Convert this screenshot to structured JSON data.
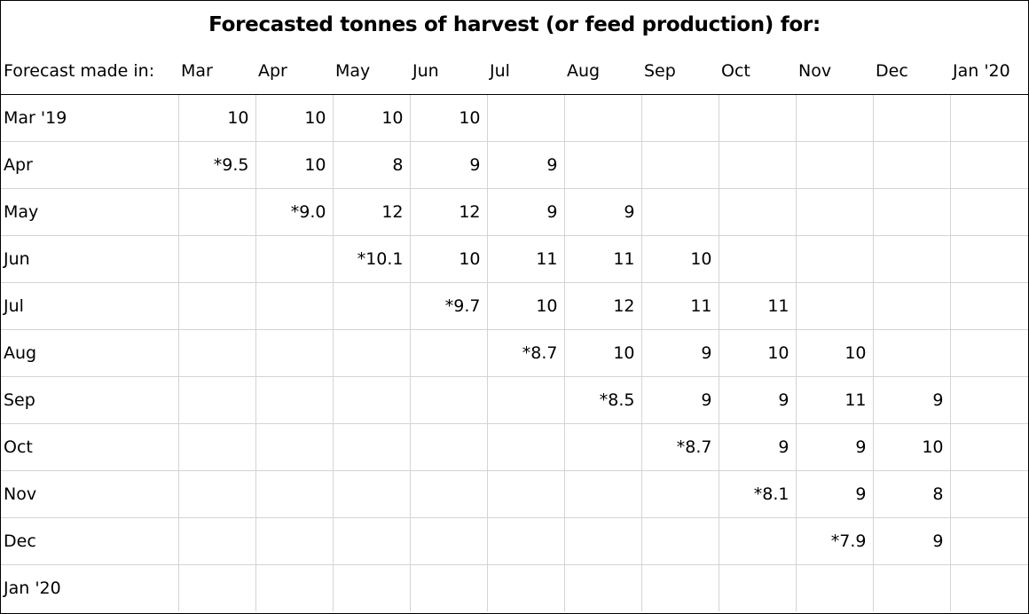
{
  "title": "Forecasted tonnes of harvest (or feed production) for:",
  "header": {
    "corner": "Forecast made in:",
    "months": [
      "Mar",
      "Apr",
      "May",
      "Jun",
      "Jul",
      "Aug",
      "Sep",
      "Oct",
      "Nov",
      "Dec",
      "Jan '20"
    ]
  },
  "rows": [
    {
      "label": "Mar '19",
      "cells": [
        "10",
        "10",
        "10",
        "10",
        "",
        "",
        "",
        "",
        "",
        "",
        ""
      ]
    },
    {
      "label": "Apr",
      "cells": [
        "*9.5",
        "10",
        "8",
        "9",
        "9",
        "",
        "",
        "",
        "",
        "",
        ""
      ]
    },
    {
      "label": "May",
      "cells": [
        "",
        "*9.0",
        "12",
        "12",
        "9",
        "9",
        "",
        "",
        "",
        "",
        ""
      ]
    },
    {
      "label": "Jun",
      "cells": [
        "",
        "",
        "*10.1",
        "10",
        "11",
        "11",
        "10",
        "",
        "",
        "",
        ""
      ]
    },
    {
      "label": "Jul",
      "cells": [
        "",
        "",
        "",
        "*9.7",
        "10",
        "12",
        "11",
        "11",
        "",
        "",
        ""
      ]
    },
    {
      "label": "Aug",
      "cells": [
        "",
        "",
        "",
        "",
        "*8.7",
        "10",
        "9",
        "10",
        "10",
        "",
        ""
      ]
    },
    {
      "label": "Sep",
      "cells": [
        "",
        "",
        "",
        "",
        "",
        "*8.5",
        "9",
        "9",
        "11",
        "9",
        ""
      ]
    },
    {
      "label": "Oct",
      "cells": [
        "",
        "",
        "",
        "",
        "",
        "",
        "*8.7",
        "9",
        "9",
        "10",
        ""
      ]
    },
    {
      "label": "Nov",
      "cells": [
        "",
        "",
        "",
        "",
        "",
        "",
        "",
        "*8.1",
        "9",
        "8",
        ""
      ]
    },
    {
      "label": "Dec",
      "cells": [
        "",
        "",
        "",
        "",
        "",
        "",
        "",
        "",
        "*7.9",
        "9",
        ""
      ]
    },
    {
      "label": "Jan '20",
      "cells": [
        "",
        "",
        "",
        "",
        "",
        "",
        "",
        "",
        "",
        "",
        ""
      ]
    }
  ]
}
